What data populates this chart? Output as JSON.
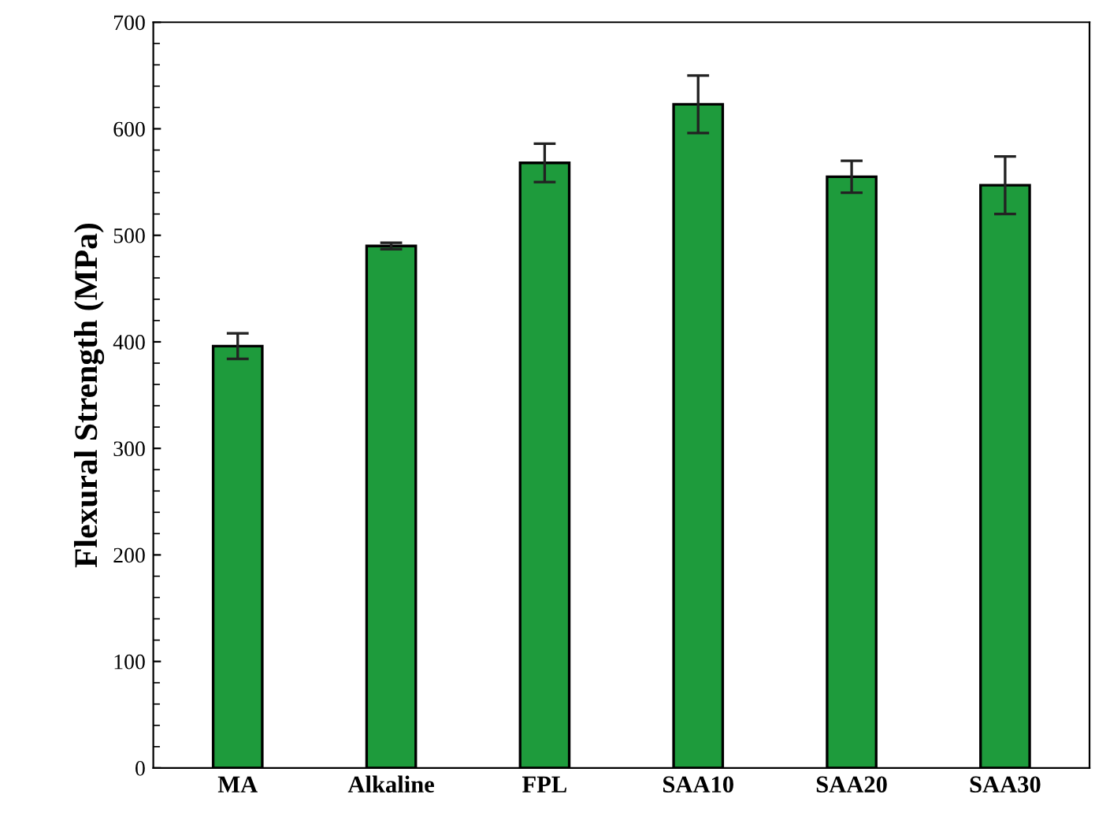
{
  "chart_data": {
    "type": "bar",
    "ylabel": "Flexural Strength (MPa)",
    "categories": [
      "MA",
      "Alkaline",
      "FPL",
      "SAA10",
      "SAA20",
      "SAA30"
    ],
    "values": [
      396,
      490,
      568,
      623,
      555,
      547
    ],
    "errors": [
      12,
      3,
      18,
      27,
      15,
      27
    ],
    "color": "#1e9b3c",
    "ylim": [
      0,
      700
    ],
    "yticks": [
      0,
      100,
      200,
      300,
      400,
      500,
      600,
      700
    ],
    "grid": false
  }
}
